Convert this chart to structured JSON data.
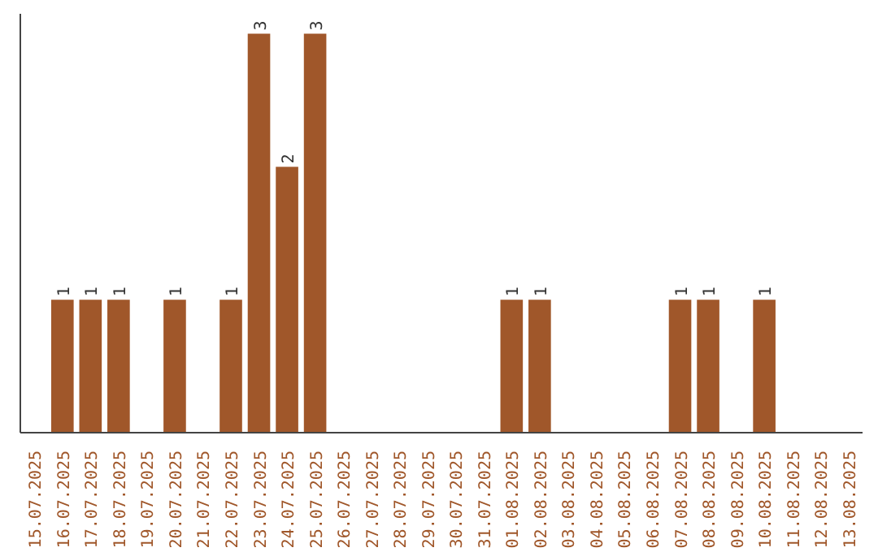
{
  "chart_data": {
    "type": "bar",
    "categories": [
      "15.07.2025",
      "16.07.2025",
      "17.07.2025",
      "18.07.2025",
      "19.07.2025",
      "20.07.2025",
      "21.07.2025",
      "22.07.2025",
      "23.07.2025",
      "24.07.2025",
      "25.07.2025",
      "26.07.2025",
      "27.07.2025",
      "28.07.2025",
      "29.07.2025",
      "30.07.2025",
      "31.07.2025",
      "01.08.2025",
      "02.08.2025",
      "03.08.2025",
      "04.08.2025",
      "05.08.2025",
      "06.08.2025",
      "07.08.2025",
      "08.08.2025",
      "09.08.2025",
      "10.08.2025",
      "11.08.2025",
      "12.08.2025",
      "13.08.2025"
    ],
    "values": [
      0,
      1,
      1,
      1,
      0,
      1,
      0,
      1,
      3,
      2,
      3,
      0,
      0,
      0,
      0,
      0,
      0,
      1,
      1,
      0,
      0,
      0,
      0,
      1,
      1,
      0,
      1,
      0,
      0,
      0
    ],
    "value_labels": [
      null,
      "1",
      "1",
      "1",
      null,
      "1",
      null,
      "1",
      "3",
      "2",
      "3",
      null,
      null,
      null,
      null,
      null,
      null,
      "1",
      "1",
      null,
      null,
      null,
      null,
      "1",
      "1",
      null,
      "1",
      null,
      null,
      null
    ],
    "color": "#a0572a",
    "ylim": [
      0,
      3.15
    ],
    "tick_labels": "x",
    "grid": false
  }
}
